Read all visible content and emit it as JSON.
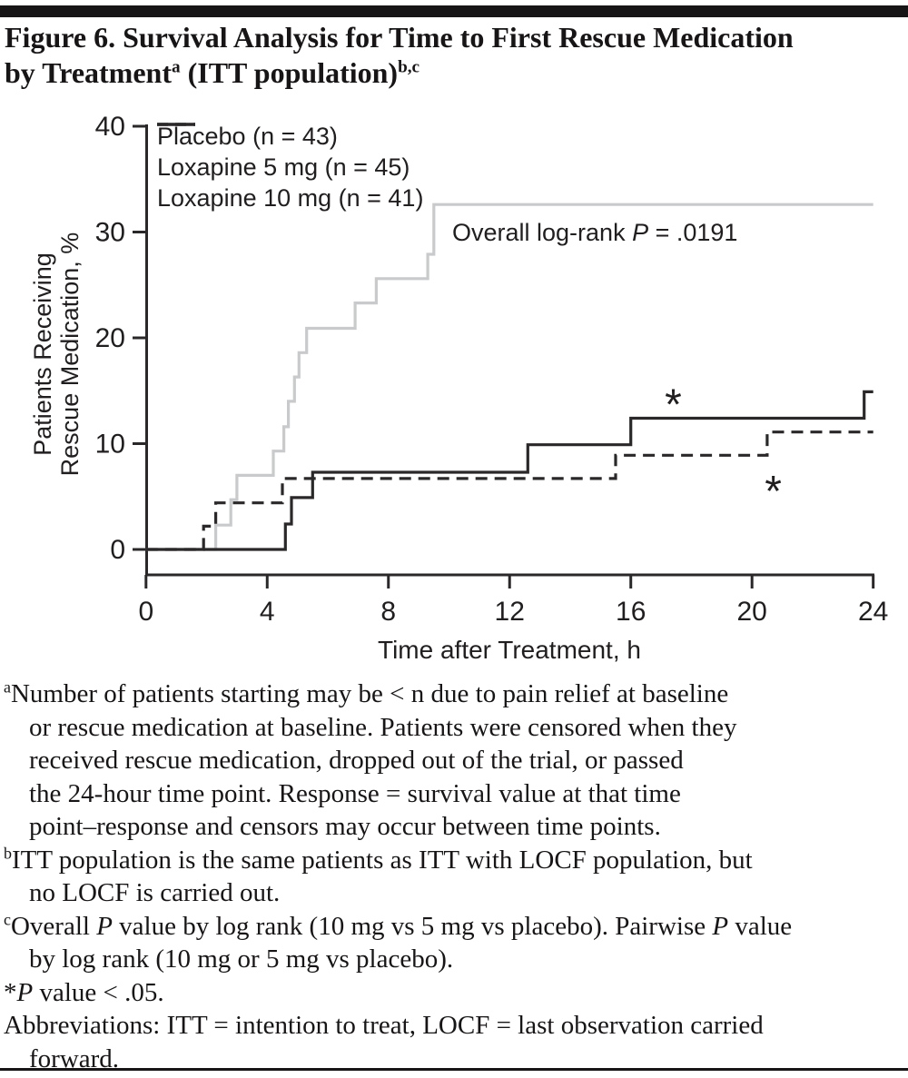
{
  "figure": {
    "title_line1": "Figure 6. Survival Analysis for Time to First Rescue Medication",
    "title_line2_pre": "by Treatment",
    "title_sup_a": "a",
    "title_line2_mid": " (ITT population)",
    "title_sup_bc": "b,c"
  },
  "chart_data": {
    "type": "line",
    "subtype": "step-survival",
    "title": "",
    "xlabel": "Time after Treatment, h",
    "ylabel_lines": [
      "Patients Receiving",
      "Rescue Medication, %"
    ],
    "xlim": [
      0,
      24
    ],
    "ylim": [
      0,
      40
    ],
    "xticks": [
      0,
      4,
      8,
      12,
      16,
      20,
      24
    ],
    "yticks": [
      0,
      10,
      20,
      30,
      40
    ],
    "grid": false,
    "legend_position": "top-left-inside",
    "annotation": {
      "pre": "Overall log-rank ",
      "italic": "P",
      "post": " = .0191"
    },
    "series": [
      {
        "name": "Placebo (n = 43)",
        "color": "#c9cacb",
        "dash": "solid",
        "steps": [
          [
            0,
            0
          ],
          [
            2.3,
            2.3
          ],
          [
            2.8,
            4.7
          ],
          [
            3.0,
            7.0
          ],
          [
            4.2,
            9.3
          ],
          [
            4.55,
            11.6
          ],
          [
            4.7,
            14.0
          ],
          [
            4.9,
            16.3
          ],
          [
            5.05,
            18.6
          ],
          [
            5.3,
            20.9
          ],
          [
            6.9,
            23.3
          ],
          [
            7.6,
            25.6
          ],
          [
            9.3,
            27.9
          ],
          [
            9.5,
            32.6
          ],
          [
            24,
            32.6
          ]
        ]
      },
      {
        "name": "Loxapine 5 mg (n = 45)",
        "color": "#2b282a",
        "dash": "dashed",
        "steps": [
          [
            0,
            0
          ],
          [
            1.9,
            2.2
          ],
          [
            2.3,
            4.4
          ],
          [
            4.5,
            6.7
          ],
          [
            15.5,
            8.9
          ],
          [
            20.5,
            11.1
          ],
          [
            24,
            11.1
          ]
        ]
      },
      {
        "name": "Loxapine 10 mg (n = 41)",
        "color": "#2b282a",
        "dash": "solid",
        "steps": [
          [
            0,
            0
          ],
          [
            4.6,
            2.4
          ],
          [
            4.8,
            4.9
          ],
          [
            5.5,
            7.3
          ],
          [
            12.6,
            9.9
          ],
          [
            16.0,
            12.4
          ],
          [
            23.7,
            14.9
          ],
          [
            24,
            14.9
          ]
        ]
      }
    ],
    "stars": [
      {
        "t": 17.4,
        "pct": 14.2,
        "series": "Loxapine 10 mg (n = 41)"
      },
      {
        "t": 20.7,
        "pct": 6.0,
        "series": "Loxapine 5 mg (n = 45)"
      }
    ],
    "star_symbol": "*"
  },
  "footnotes": [
    {
      "sup": "a",
      "lines": [
        "Number of patients starting may be < n due to pain relief at baseline",
        "or rescue medication at baseline. Patients were censored when they",
        "received rescue medication, dropped out of the trial, or passed",
        "the 24-hour time point. Response = survival value at that time",
        "point–response and censors may occur between time points."
      ]
    },
    {
      "sup": "b",
      "lines": [
        "ITT population is the same patients as ITT with LOCF population, but",
        "no LOCF is carried out."
      ]
    },
    {
      "sup": "c",
      "lines": [
        "Overall P value by log rank (10 mg vs 5 mg vs placebo). Pairwise P value",
        "by log rank (10 mg or 5 mg vs placebo)."
      ]
    },
    {
      "sup": "",
      "lines": [
        "*P value < .05."
      ]
    },
    {
      "sup": "",
      "lines": [
        "Abbreviations: ITT = intention to treat, LOCF = last observation carried",
        "forward."
      ]
    }
  ],
  "colors": {
    "rule": "#181516",
    "axis": "#2b282a",
    "text": "#211e1f",
    "placebo_line": "#c9cacb"
  }
}
